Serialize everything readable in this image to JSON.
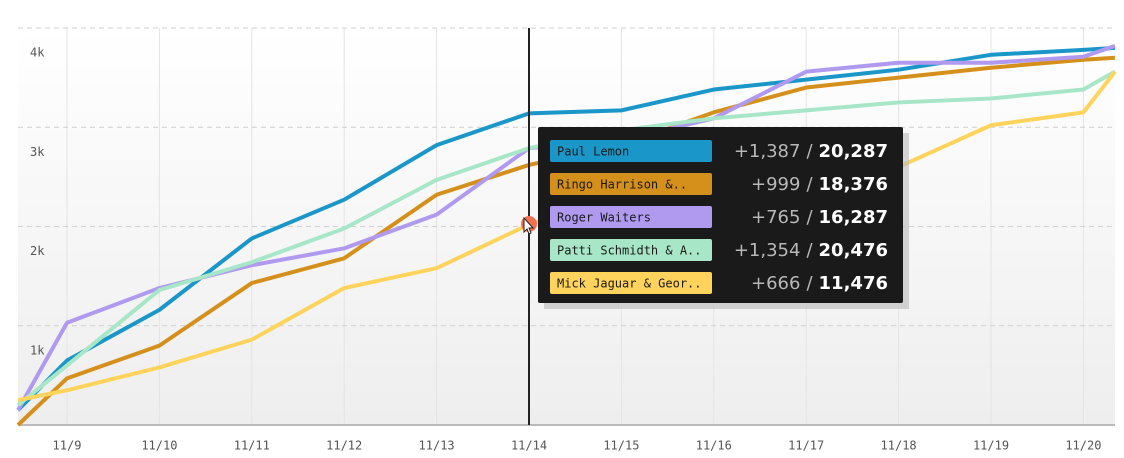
{
  "chart_data": {
    "type": "line",
    "categories": [
      null,
      "11/9",
      "11/10",
      "11/11",
      "11/12",
      "11/13",
      "11/14",
      "11/15",
      "11/16",
      "11/17",
      "11/18",
      "11/19",
      "11/20",
      null
    ],
    "ylim": [
      0,
      4000
    ],
    "yticks": [
      {
        "value": 1000,
        "label": "1k"
      },
      {
        "value": 2000,
        "label": "2k"
      },
      {
        "value": 3000,
        "label": "3k"
      },
      {
        "value": 4000,
        "label": "4k"
      }
    ],
    "grid": true,
    "series": [
      {
        "name": "Paul Lemon",
        "color": "#1a96c8",
        "values": [
          150,
          650,
          1160,
          1880,
          2270,
          2820,
          3140,
          3170,
          3380,
          3480,
          3580,
          3730,
          3780,
          3800
        ]
      },
      {
        "name": "Ringo Harrison &..",
        "color": "#d4901a",
        "values": [
          0,
          470,
          800,
          1430,
          1680,
          2320,
          2620,
          2820,
          3150,
          3400,
          3500,
          3600,
          3680,
          3700
        ]
      },
      {
        "name": "Roger Waiters",
        "color": "#b09af0",
        "values": [
          150,
          1030,
          1380,
          1610,
          1780,
          2120,
          2790,
          2870,
          3090,
          3560,
          3650,
          3650,
          3710,
          3820
        ]
      },
      {
        "name": "Patti Schmidth & A..",
        "color": "#a8e6c8",
        "values": [
          200,
          600,
          1360,
          1640,
          1980,
          2470,
          2790,
          2970,
          3090,
          3170,
          3250,
          3290,
          3380,
          3560
        ]
      },
      {
        "name": "Mick Jaguar & Geor..",
        "color": "#ffd35c",
        "values": [
          250,
          350,
          580,
          860,
          1380,
          1580,
          2020,
          2320,
          2570,
          2720,
          2600,
          3020,
          3150,
          3560
        ]
      }
    ],
    "tooltip": {
      "index": 6,
      "separator": "/",
      "rows": [
        {
          "change": "+1,387",
          "total": "20,287"
        },
        {
          "change": "+999",
          "total": "18,376"
        },
        {
          "change": "+765",
          "total": "16,287"
        },
        {
          "change": "+1,354",
          "total": "20,476"
        },
        {
          "change": "+666",
          "total": "11,476"
        }
      ]
    }
  }
}
